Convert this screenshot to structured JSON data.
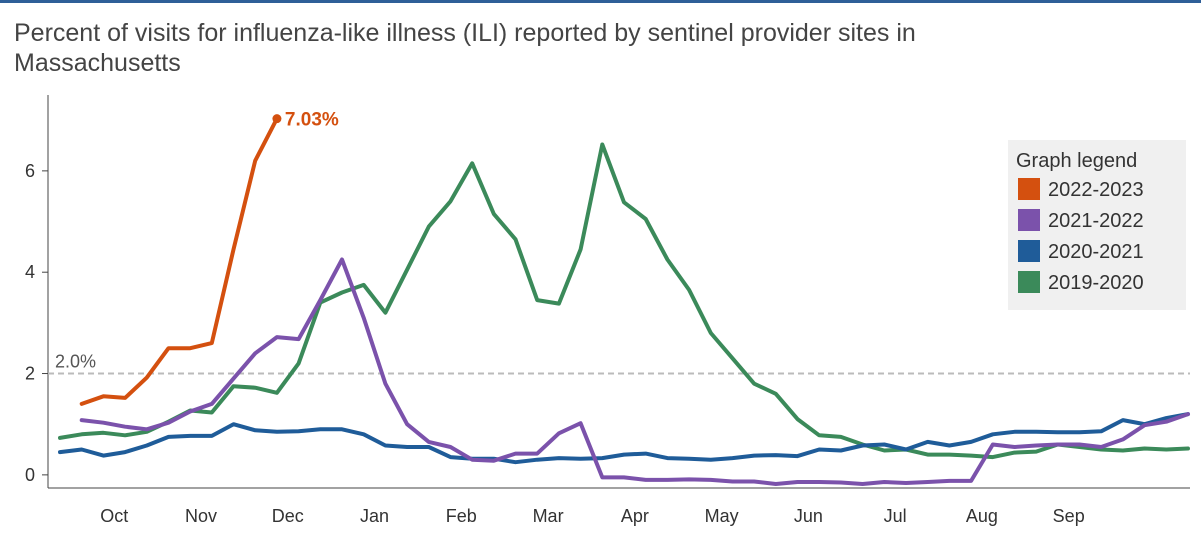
{
  "title": "Percent of visits for influenza-like illness (ILI) reported by sentinel provider sites in Massachusetts",
  "chart_data": {
    "type": "line",
    "title": "Percent of visits for influenza-like illness (ILI) reported by sentinel provider sites in Massachusetts",
    "xlabel": "",
    "ylabel": "",
    "ylim": [
      -0.2,
      7.3
    ],
    "yticks": [
      0,
      2,
      4,
      6
    ],
    "xlim": [
      0,
      52
    ],
    "month_ticks": [
      {
        "label": "Oct",
        "x": 2.5
      },
      {
        "label": "Nov",
        "x": 6.5
      },
      {
        "label": "Dec",
        "x": 10.5
      },
      {
        "label": "Jan",
        "x": 14.5
      },
      {
        "label": "Feb",
        "x": 18.5
      },
      {
        "label": "Mar",
        "x": 22.5
      },
      {
        "label": "Apr",
        "x": 26.5
      },
      {
        "label": "May",
        "x": 30.5
      },
      {
        "label": "Jun",
        "x": 34.5
      },
      {
        "label": "Jul",
        "x": 38.5
      },
      {
        "label": "Aug",
        "x": 42.5
      },
      {
        "label": "Sep",
        "x": 46.5
      }
    ],
    "reference_line": {
      "value": 2.0,
      "label": "2.0%"
    },
    "annotation": {
      "label": "7.03%",
      "series": "2022-2023"
    },
    "legend": {
      "title": "Graph legend",
      "position": "right"
    },
    "grid": false,
    "series": [
      {
        "name": "2019-2020",
        "color": "#3b8a5a",
        "values": [
          0.73,
          0.8,
          0.83,
          0.78,
          0.85,
          1.05,
          1.27,
          1.23,
          1.75,
          1.72,
          1.62,
          2.2,
          3.4,
          3.6,
          3.75,
          3.2,
          4.05,
          4.9,
          5.4,
          6.15,
          5.15,
          4.65,
          3.45,
          3.38,
          4.45,
          6.52,
          5.38,
          5.05,
          4.25,
          3.65,
          2.8,
          2.3,
          1.8,
          1.6,
          1.1,
          0.78,
          0.75,
          0.6,
          0.48,
          0.5,
          0.4,
          0.4,
          0.38,
          0.35,
          0.44,
          0.46,
          0.6,
          0.55,
          0.5,
          0.48,
          0.52,
          0.5,
          0.52
        ]
      },
      {
        "name": "2020-2021",
        "color": "#1f5c99",
        "values": [
          0.45,
          0.5,
          0.38,
          0.45,
          0.58,
          0.75,
          0.77,
          0.77,
          1.0,
          0.88,
          0.85,
          0.86,
          0.9,
          0.9,
          0.8,
          0.58,
          0.55,
          0.55,
          0.35,
          0.32,
          0.32,
          0.25,
          0.3,
          0.33,
          0.32,
          0.33,
          0.4,
          0.42,
          0.33,
          0.32,
          0.3,
          0.33,
          0.38,
          0.39,
          0.37,
          0.5,
          0.48,
          0.58,
          0.6,
          0.5,
          0.65,
          0.58,
          0.65,
          0.8,
          0.85,
          0.85,
          0.84,
          0.84,
          0.86,
          1.08,
          1.0,
          1.12,
          1.2
        ]
      },
      {
        "name": "2021-2022",
        "color": "#7b52ab",
        "values": [
          null,
          1.08,
          1.03,
          0.95,
          0.9,
          1.03,
          1.25,
          1.4,
          1.9,
          2.4,
          2.72,
          2.68,
          3.45,
          4.25,
          3.1,
          1.8,
          1.0,
          0.65,
          0.55,
          0.3,
          0.28,
          0.42,
          0.42,
          0.82,
          1.02,
          -0.05,
          -0.05,
          -0.1,
          -0.1,
          -0.09,
          -0.1,
          -0.13,
          -0.13,
          -0.18,
          -0.14,
          -0.14,
          -0.15,
          -0.18,
          -0.14,
          -0.16,
          -0.14,
          -0.12,
          -0.12,
          0.6,
          0.55,
          0.58,
          0.6,
          0.6,
          0.55,
          0.7,
          0.98,
          1.05,
          1.2
        ]
      },
      {
        "name": "2022-2023",
        "color": "#d4500f",
        "values": [
          null,
          1.4,
          1.55,
          1.52,
          1.92,
          2.5,
          2.5,
          2.6,
          4.45,
          6.2,
          7.03
        ]
      }
    ]
  }
}
